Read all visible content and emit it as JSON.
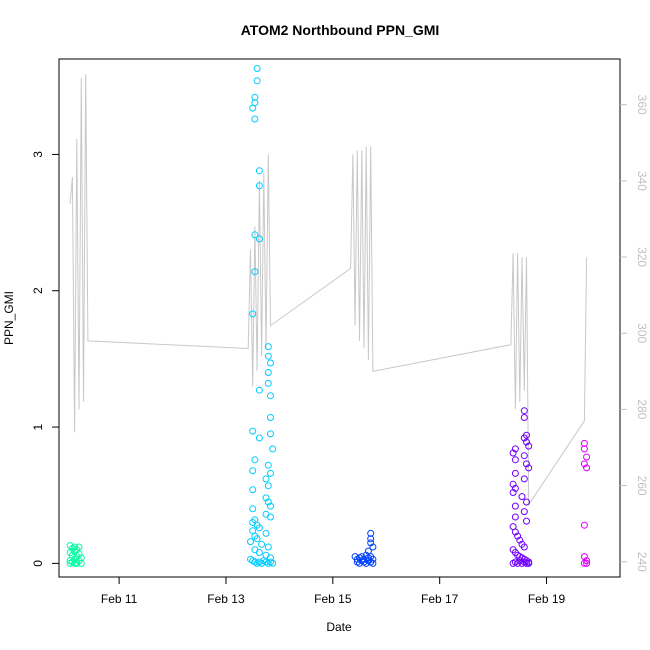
{
  "chart_data": {
    "type": "scatter",
    "title": "ATOM2 Northbound PPN_GMI",
    "xlabel": "Date",
    "ylabel": "PPN_GMI",
    "x_ticks": [
      "Feb 11",
      "Feb 13",
      "Feb 15",
      "Feb 17",
      "Feb 19"
    ],
    "xlim": [
      "2000-02-09T21:00",
      "2000-02-20T09:00"
    ],
    "ylim_left": [
      -0.1,
      3.7
    ],
    "ylim_right": [
      236,
      372
    ],
    "y_ticks_left": [
      0,
      1,
      2,
      3
    ],
    "y_ticks_right": [
      240,
      260,
      280,
      300,
      320,
      340,
      360
    ],
    "grid": false,
    "legend": "none",
    "series": [
      {
        "color": "#00ffa0",
        "points": [
          [
            "2000-02-10T02:00",
            0.13
          ],
          [
            "2000-02-10T02:00",
            0.08
          ],
          [
            "2000-02-10T02:00",
            0.02
          ],
          [
            "2000-02-10T02:00",
            0.0
          ],
          [
            "2000-02-10T03:00",
            0.11
          ],
          [
            "2000-02-10T03:00",
            0.06
          ],
          [
            "2000-02-10T03:00",
            0.01
          ],
          [
            "2000-02-10T04:00",
            0.12
          ],
          [
            "2000-02-10T04:00",
            0.09
          ],
          [
            "2000-02-10T04:00",
            0.03
          ],
          [
            "2000-02-10T04:00",
            0.0
          ],
          [
            "2000-02-10T05:00",
            0.1
          ],
          [
            "2000-02-10T05:00",
            0.05
          ],
          [
            "2000-02-10T05:00",
            0.0
          ],
          [
            "2000-02-10T06:00",
            0.12
          ],
          [
            "2000-02-10T06:00",
            0.07
          ],
          [
            "2000-02-10T06:00",
            0.02
          ],
          [
            "2000-02-10T07:00",
            0.04
          ],
          [
            "2000-02-10T07:00",
            0.0
          ]
        ]
      },
      {
        "color": "#00ccff",
        "points": [
          [
            "2000-02-13T14:00",
            3.63
          ],
          [
            "2000-02-13T14:00",
            3.54
          ],
          [
            "2000-02-13T13:00",
            3.42
          ],
          [
            "2000-02-13T13:00",
            3.38
          ],
          [
            "2000-02-13T12:00",
            3.34
          ],
          [
            "2000-02-13T13:00",
            3.26
          ],
          [
            "2000-02-13T15:00",
            2.88
          ],
          [
            "2000-02-13T15:00",
            2.77
          ],
          [
            "2000-02-13T13:00",
            2.41
          ],
          [
            "2000-02-13T15:00",
            2.38
          ],
          [
            "2000-02-13T13:00",
            2.14
          ],
          [
            "2000-02-13T12:00",
            1.83
          ],
          [
            "2000-02-13T19:00",
            1.59
          ],
          [
            "2000-02-13T19:00",
            1.52
          ],
          [
            "2000-02-13T20:00",
            1.47
          ],
          [
            "2000-02-13T19:00",
            1.4
          ],
          [
            "2000-02-13T19:00",
            1.32
          ],
          [
            "2000-02-13T15:00",
            1.27
          ],
          [
            "2000-02-13T20:00",
            1.23
          ],
          [
            "2000-02-13T20:00",
            1.07
          ],
          [
            "2000-02-13T12:00",
            0.97
          ],
          [
            "2000-02-13T20:00",
            0.95
          ],
          [
            "2000-02-13T15:00",
            0.92
          ],
          [
            "2000-02-13T21:00",
            0.84
          ],
          [
            "2000-02-13T13:00",
            0.76
          ],
          [
            "2000-02-13T12:00",
            0.68
          ],
          [
            "2000-02-13T19:00",
            0.72
          ],
          [
            "2000-02-13T20:00",
            0.66
          ],
          [
            "2000-02-13T18:00",
            0.62
          ],
          [
            "2000-02-13T19:00",
            0.57
          ],
          [
            "2000-02-13T12:00",
            0.54
          ],
          [
            "2000-02-13T18:00",
            0.48
          ],
          [
            "2000-02-13T19:00",
            0.45
          ],
          [
            "2000-02-13T20:00",
            0.42
          ],
          [
            "2000-02-13T12:00",
            0.4
          ],
          [
            "2000-02-13T18:00",
            0.36
          ],
          [
            "2000-02-13T20:00",
            0.34
          ],
          [
            "2000-02-13T13:00",
            0.32
          ],
          [
            "2000-02-13T12:00",
            0.3
          ],
          [
            "2000-02-13T14:00",
            0.28
          ],
          [
            "2000-02-13T15:00",
            0.26
          ],
          [
            "2000-02-13T12:00",
            0.24
          ],
          [
            "2000-02-13T18:00",
            0.22
          ],
          [
            "2000-02-13T13:00",
            0.2
          ],
          [
            "2000-02-13T14:00",
            0.18
          ],
          [
            "2000-02-13T11:00",
            0.16
          ],
          [
            "2000-02-13T16:00",
            0.14
          ],
          [
            "2000-02-13T19:00",
            0.12
          ],
          [
            "2000-02-13T13:00",
            0.1
          ],
          [
            "2000-02-13T15:00",
            0.08
          ],
          [
            "2000-02-13T18:00",
            0.06
          ],
          [
            "2000-02-13T20:00",
            0.04
          ],
          [
            "2000-02-13T11:00",
            0.03
          ],
          [
            "2000-02-13T12:00",
            0.02
          ],
          [
            "2000-02-13T13:00",
            0.01
          ],
          [
            "2000-02-13T14:00",
            0.0
          ],
          [
            "2000-02-13T15:00",
            0.01
          ],
          [
            "2000-02-13T16:00",
            0.0
          ],
          [
            "2000-02-13T17:00",
            0.02
          ],
          [
            "2000-02-13T18:00",
            0.01
          ],
          [
            "2000-02-13T19:00",
            0.0
          ],
          [
            "2000-02-13T20:00",
            0.01
          ],
          [
            "2000-02-13T21:00",
            0.0
          ]
        ]
      },
      {
        "color": "#0040ff",
        "points": [
          [
            "2000-02-15T17:00",
            0.22
          ],
          [
            "2000-02-15T17:00",
            0.18
          ],
          [
            "2000-02-15T17:00",
            0.15
          ],
          [
            "2000-02-15T18:00",
            0.12
          ],
          [
            "2000-02-15T16:00",
            0.09
          ],
          [
            "2000-02-15T10:00",
            0.05
          ],
          [
            "2000-02-15T11:00",
            0.03
          ],
          [
            "2000-02-15T11:00",
            0.01
          ],
          [
            "2000-02-15T12:00",
            0.04
          ],
          [
            "2000-02-15T12:00",
            0.0
          ],
          [
            "2000-02-15T13:00",
            0.02
          ],
          [
            "2000-02-15T13:00",
            0.05
          ],
          [
            "2000-02-15T14:00",
            0.01
          ],
          [
            "2000-02-15T14:00",
            0.03
          ],
          [
            "2000-02-15T15:00",
            0.0
          ],
          [
            "2000-02-15T15:00",
            0.06
          ],
          [
            "2000-02-15T16:00",
            0.02
          ],
          [
            "2000-02-15T16:00",
            0.04
          ],
          [
            "2000-02-15T17:00",
            0.01
          ],
          [
            "2000-02-15T17:00",
            0.05
          ],
          [
            "2000-02-15T18:00",
            0.0
          ],
          [
            "2000-02-15T18:00",
            0.03
          ]
        ]
      },
      {
        "color": "#7000ff",
        "points": [
          [
            "2000-02-18T14:00",
            1.12
          ],
          [
            "2000-02-18T14:00",
            1.07
          ],
          [
            "2000-02-18T15:00",
            0.94
          ],
          [
            "2000-02-18T14:00",
            0.92
          ],
          [
            "2000-02-18T15:00",
            0.89
          ],
          [
            "2000-02-18T16:00",
            0.86
          ],
          [
            "2000-02-18T10:00",
            0.84
          ],
          [
            "2000-02-18T09:00",
            0.81
          ],
          [
            "2000-02-18T14:00",
            0.79
          ],
          [
            "2000-02-18T10:00",
            0.76
          ],
          [
            "2000-02-18T15:00",
            0.73
          ],
          [
            "2000-02-18T16:00",
            0.7
          ],
          [
            "2000-02-18T10:00",
            0.66
          ],
          [
            "2000-02-18T14:00",
            0.62
          ],
          [
            "2000-02-18T09:00",
            0.58
          ],
          [
            "2000-02-18T10:00",
            0.55
          ],
          [
            "2000-02-18T09:00",
            0.52
          ],
          [
            "2000-02-18T13:00",
            0.49
          ],
          [
            "2000-02-18T15:00",
            0.45
          ],
          [
            "2000-02-18T10:00",
            0.42
          ],
          [
            "2000-02-18T14:00",
            0.38
          ],
          [
            "2000-02-18T10:00",
            0.34
          ],
          [
            "2000-02-18T15:00",
            0.31
          ],
          [
            "2000-02-18T09:00",
            0.27
          ],
          [
            "2000-02-18T10:00",
            0.23
          ],
          [
            "2000-02-18T11:00",
            0.2
          ],
          [
            "2000-02-18T12:00",
            0.17
          ],
          [
            "2000-02-18T13:00",
            0.14
          ],
          [
            "2000-02-18T14:00",
            0.12
          ],
          [
            "2000-02-18T09:00",
            0.1
          ],
          [
            "2000-02-18T10:00",
            0.08
          ],
          [
            "2000-02-18T11:00",
            0.06
          ],
          [
            "2000-02-18T12:00",
            0.05
          ],
          [
            "2000-02-18T13:00",
            0.04
          ],
          [
            "2000-02-18T14:00",
            0.03
          ],
          [
            "2000-02-18T15:00",
            0.02
          ],
          [
            "2000-02-18T16:00",
            0.01
          ],
          [
            "2000-02-18T09:00",
            0.0
          ],
          [
            "2000-02-18T10:00",
            0.01
          ],
          [
            "2000-02-18T11:00",
            0.0
          ],
          [
            "2000-02-18T12:00",
            0.02
          ],
          [
            "2000-02-18T13:00",
            0.0
          ],
          [
            "2000-02-18T14:00",
            0.01
          ],
          [
            "2000-02-18T15:00",
            0.0
          ],
          [
            "2000-02-18T16:00",
            0.0
          ]
        ]
      },
      {
        "color": "#e000ff",
        "points": [
          [
            "2000-02-19T17:00",
            0.88
          ],
          [
            "2000-02-19T17:00",
            0.84
          ],
          [
            "2000-02-19T18:00",
            0.78
          ],
          [
            "2000-02-19T17:00",
            0.73
          ],
          [
            "2000-02-19T18:00",
            0.7
          ],
          [
            "2000-02-19T17:00",
            0.28
          ],
          [
            "2000-02-19T17:00",
            0.05
          ],
          [
            "2000-02-19T18:00",
            0.02
          ],
          [
            "2000-02-19T17:00",
            0.0
          ],
          [
            "2000-02-19T18:00",
            0.0
          ]
        ]
      }
    ],
    "secondary_line": {
      "color": "#c8c8c8",
      "points": [
        [
          "2000-02-10T02:00",
          334
        ],
        [
          "2000-02-10T03:00",
          341
        ],
        [
          "2000-02-10T04:00",
          274
        ],
        [
          "2000-02-10T05:00",
          351
        ],
        [
          "2000-02-10T06:00",
          280
        ],
        [
          "2000-02-10T07:00",
          367
        ],
        [
          "2000-02-10T08:00",
          282
        ],
        [
          "2000-02-10T09:00",
          368
        ],
        [
          "2000-02-10T10:00",
          298
        ],
        [
          "2000-02-13T10:00",
          296
        ],
        [
          "2000-02-13T11:00",
          322
        ],
        [
          "2000-02-13T12:00",
          286
        ],
        [
          "2000-02-13T13:00",
          328
        ],
        [
          "2000-02-13T14:00",
          290
        ],
        [
          "2000-02-13T15:00",
          340
        ],
        [
          "2000-02-13T16:00",
          294
        ],
        [
          "2000-02-13T17:00",
          342
        ],
        [
          "2000-02-13T18:00",
          296
        ],
        [
          "2000-02-13T19:00",
          347
        ],
        [
          "2000-02-13T20:00",
          302
        ],
        [
          "2000-02-15T08:00",
          317
        ],
        [
          "2000-02-15T09:00",
          347
        ],
        [
          "2000-02-15T10:00",
          302
        ],
        [
          "2000-02-15T11:00",
          348
        ],
        [
          "2000-02-15T12:00",
          298
        ],
        [
          "2000-02-15T13:00",
          348
        ],
        [
          "2000-02-15T14:00",
          296
        ],
        [
          "2000-02-15T15:00",
          349
        ],
        [
          "2000-02-15T16:00",
          293
        ],
        [
          "2000-02-15T17:00",
          349
        ],
        [
          "2000-02-15T18:00",
          290
        ],
        [
          "2000-02-18T08:00",
          297
        ],
        [
          "2000-02-18T09:00",
          321
        ],
        [
          "2000-02-18T10:00",
          280
        ],
        [
          "2000-02-18T11:00",
          321
        ],
        [
          "2000-02-18T12:00",
          282
        ],
        [
          "2000-02-18T13:00",
          320
        ],
        [
          "2000-02-18T14:00",
          285
        ],
        [
          "2000-02-18T15:00",
          320
        ],
        [
          "2000-02-18T16:00",
          255
        ],
        [
          "2000-02-19T17:00",
          277
        ],
        [
          "2000-02-19T18:00",
          320
        ]
      ]
    }
  }
}
